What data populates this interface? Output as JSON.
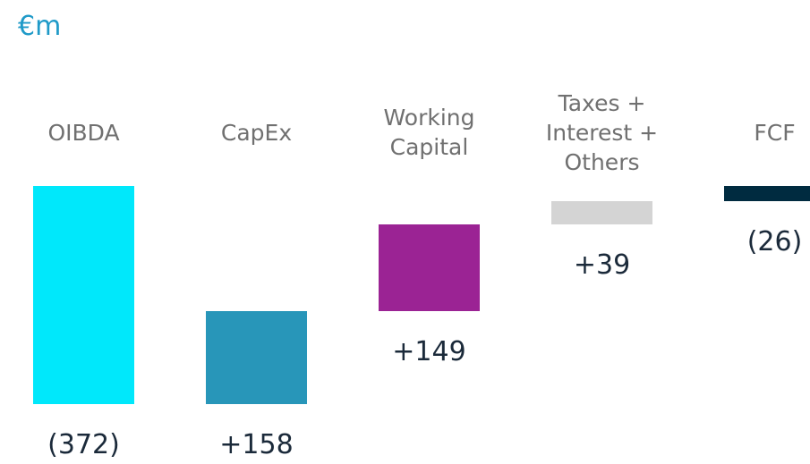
{
  "chart_data": {
    "type": "waterfall",
    "title": "€m",
    "categories": [
      "OIBDA",
      "CapEx",
      "Working Capital",
      "Taxes + Interest + Others",
      "FCF"
    ],
    "values": [
      -372,
      158,
      149,
      39,
      -26
    ],
    "value_labels": [
      "(372)",
      "+158",
      "+149",
      "+39",
      "(26)"
    ],
    "colors": [
      "#00e8fb",
      "#2896b9",
      "#9b2394",
      "#d4d4d4",
      "#002b40"
    ],
    "total_last": true
  }
}
